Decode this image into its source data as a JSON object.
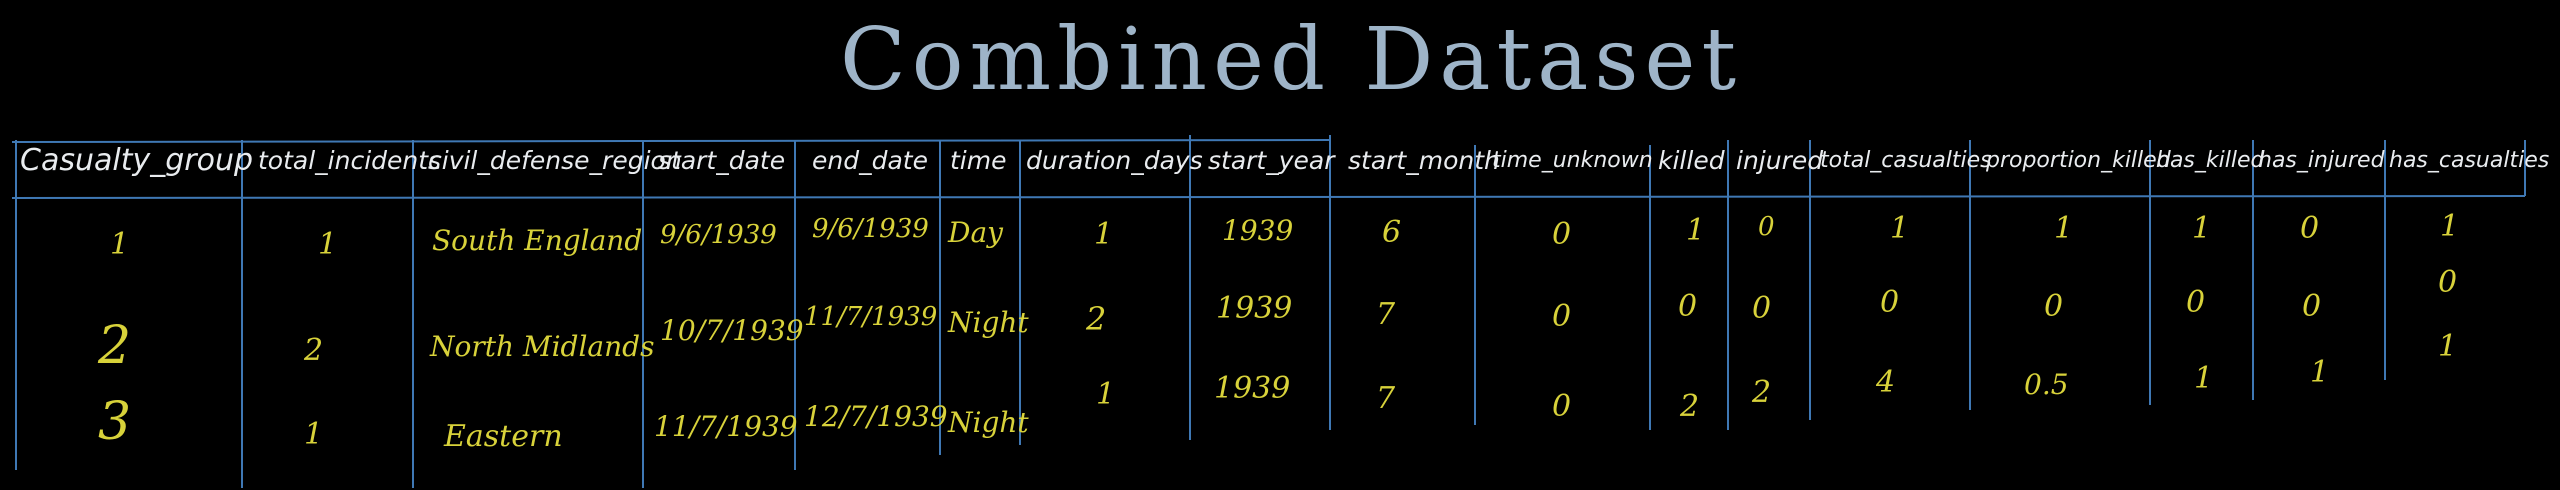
{
  "title": "Combined Dataset",
  "headers": [
    "Casualty_group",
    "total_incidents",
    "civil_defense_region",
    "start_date",
    "end_date",
    "time",
    "duration_days",
    "start_year",
    "start_month",
    "time_unknown",
    "killed",
    "injured",
    "total_casualties",
    "proportion_killed",
    "has_killed",
    "has_injured",
    "has_casualties"
  ],
  "rows": [
    {
      "casualty_group": "1",
      "total_incidents": "1",
      "civil_defense_region": "South England",
      "start_date": "9/6/1939",
      "end_date": "9/6/1939",
      "time": "Day",
      "duration_days": "1",
      "start_year": "1939",
      "start_month": "6",
      "time_unknown": "0",
      "killed": "1",
      "injured": "0",
      "total_casualties": "1",
      "proportion_killed": "1",
      "has_killed": "1",
      "has_injured": "0",
      "has_casualties": "1"
    },
    {
      "casualty_group": "2",
      "total_incidents": "2",
      "civil_defense_region": "North Midlands",
      "start_date": "10/7/1939",
      "end_date": "11/7/1939",
      "time": "Night",
      "duration_days": "2",
      "start_year": "1939",
      "start_month": "7",
      "time_unknown": "0",
      "killed": "0",
      "injured": "0",
      "total_casualties": "0",
      "proportion_killed": "0",
      "has_killed": "0",
      "has_injured": "0",
      "has_casualties": "0"
    },
    {
      "casualty_group": "3",
      "total_incidents": "1",
      "civil_defense_region": "Eastern",
      "start_date": "11/7/1939",
      "end_date": "12/7/1939",
      "time": "Night",
      "duration_days": "1",
      "start_year": "1939",
      "start_month": "7",
      "time_unknown": "0",
      "killed": "2",
      "injured": "2",
      "total_casualties": "4",
      "proportion_killed": "0.5",
      "has_killed": "1",
      "has_injured": "1",
      "has_casualties": "1"
    }
  ],
  "colors": {
    "header_text": "#e9ecef",
    "cell_text": "#d8d23a",
    "grid": "#3f78b4",
    "title": "#9eb4c8"
  }
}
